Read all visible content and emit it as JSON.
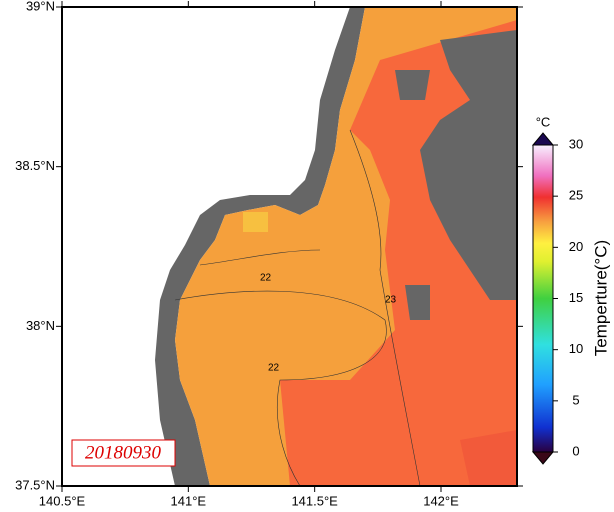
{
  "map": {
    "lat_ticks": [
      {
        "value": 39,
        "label": "39°N"
      },
      {
        "value": 38.5,
        "label": "38.5°N"
      },
      {
        "value": 38,
        "label": "38°N"
      },
      {
        "value": 37.5,
        "label": "37.5°N"
      }
    ],
    "lon_ticks": [
      {
        "value": 140.5,
        "label": "140.5°E"
      },
      {
        "value": 141,
        "label": "141°E"
      },
      {
        "value": 141.5,
        "label": "141.5°E"
      },
      {
        "value": 142,
        "label": "142°E"
      }
    ],
    "date_label": "20180930",
    "contour_labels": [
      "22",
      "23",
      "22"
    ]
  },
  "colorbar": {
    "unit": "°C",
    "title": "Temperture(°C)",
    "range": [
      0,
      30
    ],
    "ticks": [
      0,
      5,
      10,
      15,
      20,
      25,
      30
    ]
  }
}
